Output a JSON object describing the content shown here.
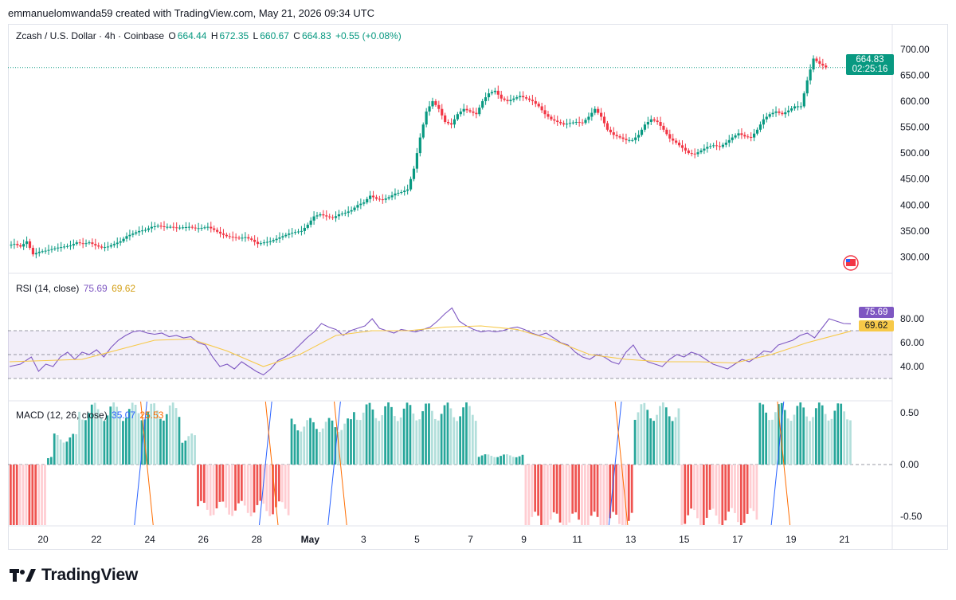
{
  "attribution": "emmanuelomwanda59 created with TradingView.com, May 21, 2026 09:34 UTC",
  "brand": "TradingView",
  "symbol_header": {
    "title": "Zcash / U.S. Dollar · 4h · Coinbase",
    "open_label": "O",
    "open": "664.44",
    "high_label": "H",
    "high": "672.35",
    "low_label": "L",
    "low": "660.67",
    "close_label": "C",
    "close": "664.83",
    "change": "+0.55 (+0.08%)"
  },
  "price_tag": {
    "price": "664.83",
    "countdown": "02:25:16"
  },
  "rsi_legend": {
    "label": "RSI (14, close)",
    "rsi": "75.69",
    "ma": "69.62"
  },
  "macd_legend": {
    "label": "MACD (12, 26, close)",
    "v1": "35.07",
    "v2": "25.53"
  },
  "colors": {
    "up": "#089981",
    "down": "#f23645",
    "rsi": "#7e57c2",
    "rsi_ma": "#f7c948",
    "macd": "#2962ff",
    "signal": "#ff6d00",
    "hist_up_strong": "#26a69a",
    "hist_up_weak": "#b2dfdb",
    "hist_down_strong": "#ef5350",
    "hist_down_weak": "#ffcdd2"
  },
  "chart_data": {
    "type": "candlestick",
    "x_ticks": [
      "20",
      "22",
      "24",
      "26",
      "28",
      "May",
      "3",
      "5",
      "7",
      "9",
      "11",
      "13",
      "15",
      "17",
      "19",
      "21"
    ],
    "price_axis": {
      "ticks": [
        "700.00",
        "650.00",
        "600.00",
        "550.00",
        "500.00",
        "450.00",
        "400.00",
        "350.00",
        "300.00"
      ],
      "range": [
        270,
        715
      ]
    },
    "price_anchors": [
      [
        0,
        322
      ],
      [
        2,
        325
      ],
      [
        4,
        320
      ],
      [
        6,
        330
      ],
      [
        8,
        305
      ],
      [
        10,
        310
      ],
      [
        12,
        312
      ],
      [
        14,
        315
      ],
      [
        16,
        318
      ],
      [
        18,
        320
      ],
      [
        20,
        322
      ],
      [
        22,
        328
      ],
      [
        24,
        325
      ],
      [
        26,
        328
      ],
      [
        28,
        322
      ],
      [
        30,
        318
      ],
      [
        32,
        320
      ],
      [
        34,
        325
      ],
      [
        36,
        330
      ],
      [
        38,
        340
      ],
      [
        40,
        345
      ],
      [
        42,
        350
      ],
      [
        44,
        352
      ],
      [
        46,
        358
      ],
      [
        48,
        360
      ],
      [
        50,
        358
      ],
      [
        52,
        358
      ],
      [
        54,
        356
      ],
      [
        56,
        357
      ],
      [
        58,
        358
      ],
      [
        60,
        355
      ],
      [
        62,
        356
      ],
      [
        64,
        358
      ],
      [
        66,
        352
      ],
      [
        68,
        345
      ],
      [
        70,
        340
      ],
      [
        72,
        338
      ],
      [
        74,
        336
      ],
      [
        76,
        338
      ],
      [
        78,
        333
      ],
      [
        80,
        325
      ],
      [
        82,
        328
      ],
      [
        84,
        330
      ],
      [
        86,
        335
      ],
      [
        88,
        340
      ],
      [
        90,
        345
      ],
      [
        92,
        348
      ],
      [
        94,
        350
      ],
      [
        96,
        362
      ],
      [
        98,
        378
      ],
      [
        100,
        382
      ],
      [
        102,
        378
      ],
      [
        104,
        375
      ],
      [
        106,
        382
      ],
      [
        108,
        385
      ],
      [
        110,
        390
      ],
      [
        112,
        400
      ],
      [
        114,
        405
      ],
      [
        116,
        418
      ],
      [
        118,
        412
      ],
      [
        120,
        410
      ],
      [
        122,
        415
      ],
      [
        124,
        422
      ],
      [
        126,
        425
      ],
      [
        128,
        430
      ],
      [
        130,
        470
      ],
      [
        132,
        530
      ],
      [
        134,
        580
      ],
      [
        136,
        600
      ],
      [
        138,
        585
      ],
      [
        140,
        560
      ],
      [
        142,
        555
      ],
      [
        144,
        575
      ],
      [
        146,
        585
      ],
      [
        148,
        580
      ],
      [
        150,
        575
      ],
      [
        152,
        600
      ],
      [
        154,
        615
      ],
      [
        156,
        620
      ],
      [
        158,
        605
      ],
      [
        160,
        600
      ],
      [
        162,
        605
      ],
      [
        164,
        610
      ],
      [
        166,
        605
      ],
      [
        168,
        600
      ],
      [
        170,
        590
      ],
      [
        172,
        575
      ],
      [
        174,
        565
      ],
      [
        176,
        560
      ],
      [
        178,
        555
      ],
      [
        180,
        558
      ],
      [
        182,
        560
      ],
      [
        184,
        558
      ],
      [
        186,
        570
      ],
      [
        188,
        585
      ],
      [
        190,
        570
      ],
      [
        192,
        545
      ],
      [
        194,
        535
      ],
      [
        196,
        530
      ],
      [
        198,
        525
      ],
      [
        200,
        525
      ],
      [
        202,
        535
      ],
      [
        204,
        555
      ],
      [
        206,
        565
      ],
      [
        208,
        560
      ],
      [
        210,
        545
      ],
      [
        212,
        528
      ],
      [
        214,
        520
      ],
      [
        216,
        510
      ],
      [
        218,
        500
      ],
      [
        220,
        498
      ],
      [
        222,
        505
      ],
      [
        224,
        512
      ],
      [
        226,
        515
      ],
      [
        228,
        512
      ],
      [
        230,
        520
      ],
      [
        232,
        530
      ],
      [
        234,
        538
      ],
      [
        236,
        532
      ],
      [
        238,
        530
      ],
      [
        240,
        545
      ],
      [
        242,
        565
      ],
      [
        244,
        575
      ],
      [
        246,
        580
      ],
      [
        248,
        575
      ],
      [
        250,
        582
      ],
      [
        252,
        590
      ],
      [
        254,
        590
      ],
      [
        256,
        640
      ],
      [
        258,
        682
      ],
      [
        260,
        672
      ],
      [
        262,
        665
      ]
    ],
    "rsi_axis": {
      "ticks": [
        "80.00",
        "60.00",
        "40.00"
      ],
      "bands": [
        70,
        50,
        30
      ]
    },
    "rsi": [
      [
        0,
        40
      ],
      [
        3,
        42
      ],
      [
        6,
        48
      ],
      [
        8,
        36
      ],
      [
        10,
        42
      ],
      [
        12,
        40
      ],
      [
        14,
        48
      ],
      [
        16,
        52
      ],
      [
        18,
        46
      ],
      [
        20,
        52
      ],
      [
        22,
        50
      ],
      [
        24,
        54
      ],
      [
        26,
        48
      ],
      [
        28,
        56
      ],
      [
        30,
        62
      ],
      [
        32,
        66
      ],
      [
        34,
        69
      ],
      [
        36,
        70
      ],
      [
        38,
        68
      ],
      [
        40,
        67
      ],
      [
        42,
        68
      ],
      [
        44,
        65
      ],
      [
        46,
        66
      ],
      [
        48,
        64
      ],
      [
        50,
        65
      ],
      [
        52,
        60
      ],
      [
        54,
        58
      ],
      [
        56,
        48
      ],
      [
        58,
        40
      ],
      [
        60,
        42
      ],
      [
        62,
        38
      ],
      [
        64,
        44
      ],
      [
        66,
        40
      ],
      [
        68,
        36
      ],
      [
        70,
        33
      ],
      [
        72,
        38
      ],
      [
        74,
        45
      ],
      [
        76,
        48
      ],
      [
        78,
        52
      ],
      [
        80,
        58
      ],
      [
        82,
        64
      ],
      [
        84,
        69
      ],
      [
        86,
        76
      ],
      [
        88,
        73
      ],
      [
        90,
        71
      ],
      [
        92,
        66
      ],
      [
        94,
        70
      ],
      [
        96,
        72
      ],
      [
        98,
        74
      ],
      [
        100,
        80
      ],
      [
        102,
        72
      ],
      [
        104,
        70
      ],
      [
        106,
        68
      ],
      [
        108,
        71
      ],
      [
        110,
        70
      ],
      [
        112,
        69
      ],
      [
        114,
        71
      ],
      [
        116,
        73
      ],
      [
        118,
        78
      ],
      [
        120,
        84
      ],
      [
        122,
        89
      ],
      [
        124,
        78
      ],
      [
        126,
        74
      ],
      [
        128,
        71
      ],
      [
        130,
        69
      ],
      [
        132,
        70
      ],
      [
        134,
        69
      ],
      [
        136,
        70
      ],
      [
        138,
        72
      ],
      [
        140,
        73
      ],
      [
        142,
        71
      ],
      [
        144,
        68
      ],
      [
        146,
        66
      ],
      [
        148,
        68
      ],
      [
        150,
        64
      ],
      [
        152,
        60
      ],
      [
        154,
        58
      ],
      [
        156,
        52
      ],
      [
        158,
        48
      ],
      [
        160,
        46
      ],
      [
        162,
        50
      ],
      [
        164,
        48
      ],
      [
        166,
        44
      ],
      [
        168,
        42
      ],
      [
        170,
        52
      ],
      [
        172,
        58
      ],
      [
        174,
        48
      ],
      [
        176,
        44
      ],
      [
        178,
        42
      ],
      [
        180,
        40
      ],
      [
        182,
        46
      ],
      [
        184,
        50
      ],
      [
        186,
        48
      ],
      [
        188,
        52
      ],
      [
        190,
        50
      ],
      [
        192,
        46
      ],
      [
        194,
        42
      ],
      [
        196,
        40
      ],
      [
        198,
        38
      ],
      [
        200,
        42
      ],
      [
        202,
        46
      ],
      [
        204,
        44
      ],
      [
        206,
        48
      ],
      [
        208,
        53
      ],
      [
        210,
        52
      ],
      [
        212,
        58
      ],
      [
        214,
        60
      ],
      [
        216,
        62
      ],
      [
        218,
        66
      ],
      [
        220,
        68
      ],
      [
        222,
        64
      ],
      [
        224,
        72
      ],
      [
        226,
        80
      ],
      [
        228,
        78
      ],
      [
        230,
        76
      ],
      [
        232,
        75.69
      ]
    ],
    "rsi_ma": [
      [
        0,
        44
      ],
      [
        20,
        46
      ],
      [
        40,
        62
      ],
      [
        50,
        63
      ],
      [
        60,
        53
      ],
      [
        70,
        40
      ],
      [
        80,
        50
      ],
      [
        90,
        66
      ],
      [
        100,
        70
      ],
      [
        110,
        70
      ],
      [
        120,
        73
      ],
      [
        130,
        74
      ],
      [
        140,
        71
      ],
      [
        150,
        62
      ],
      [
        160,
        50
      ],
      [
        170,
        46
      ],
      [
        180,
        44
      ],
      [
        190,
        44
      ],
      [
        200,
        43
      ],
      [
        210,
        50
      ],
      [
        220,
        60
      ],
      [
        232,
        69.62
      ]
    ],
    "macd_axis": {
      "ticks": [
        "0.50",
        "0.00",
        "-0.50"
      ]
    },
    "macd_histogram_segments": [
      [
        0,
        12,
        -0.9,
        "down"
      ],
      [
        12,
        14,
        0.08,
        "up"
      ],
      [
        14,
        22,
        0.3,
        "up"
      ],
      [
        22,
        55,
        0.6,
        "up"
      ],
      [
        55,
        60,
        0.3,
        "up"
      ],
      [
        60,
        90,
        -0.5,
        "down"
      ],
      [
        90,
        110,
        0.45,
        "up"
      ],
      [
        110,
        130,
        0.6,
        "up"
      ],
      [
        130,
        150,
        0.6,
        "up"
      ],
      [
        150,
        165,
        0.1,
        "up"
      ],
      [
        165,
        200,
        -0.65,
        "down"
      ],
      [
        200,
        215,
        0.6,
        "up"
      ],
      [
        215,
        240,
        -0.6,
        "down"
      ],
      [
        240,
        260,
        0.6,
        "up"
      ],
      [
        260,
        270,
        0.6,
        "up"
      ]
    ]
  }
}
